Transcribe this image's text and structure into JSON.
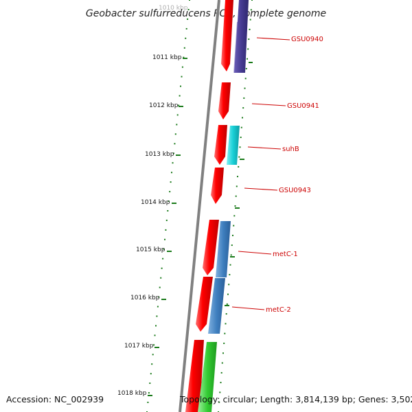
{
  "title": "Geobacter sulfurreducens PCA, complete genome",
  "tick_labels": [
    "1010 kbp",
    "1011 kbp",
    "1012 kbp",
    "1013 kbp",
    "1014 kbp",
    "1015 kbp",
    "1016 kbp",
    "1017 kbp",
    "1018 kbp"
  ],
  "genes": [
    {
      "name": "GSU0940",
      "label": "GSU0940",
      "color": "#ff0000"
    },
    {
      "name": "GSU0940b",
      "label": "",
      "color": "#4a3c96"
    },
    {
      "name": "GSU0941",
      "label": "GSU0941",
      "color": "#ff0000"
    },
    {
      "name": "suhB-cds",
      "label": "",
      "color": "#ff0000"
    },
    {
      "name": "suhB",
      "label": "suhB",
      "color": "#19cfd6"
    },
    {
      "name": "GSU0943",
      "label": "GSU0943",
      "color": "#ff0000"
    },
    {
      "name": "red-5",
      "label": "",
      "color": "#ff0000"
    },
    {
      "name": "metC-1",
      "label": "metC-1",
      "color": "#3f7fbf"
    },
    {
      "name": "red-6",
      "label": "",
      "color": "#ff0000"
    },
    {
      "name": "metC-2",
      "label": "metC-2",
      "color": "#3f7fbf"
    },
    {
      "name": "red-7",
      "label": "",
      "color": "#ff0000"
    },
    {
      "name": "green-1",
      "label": "",
      "color": "#33cc33"
    }
  ],
  "colors": {
    "backbone": "#808080",
    "ticks": "#1a7a1a",
    "gene_label": "#cc0000"
  },
  "footer": {
    "accession": "Accession: NC_002939",
    "topology": "Topology: circular; Length: 3,814,139 bp; Genes: 3,502"
  }
}
